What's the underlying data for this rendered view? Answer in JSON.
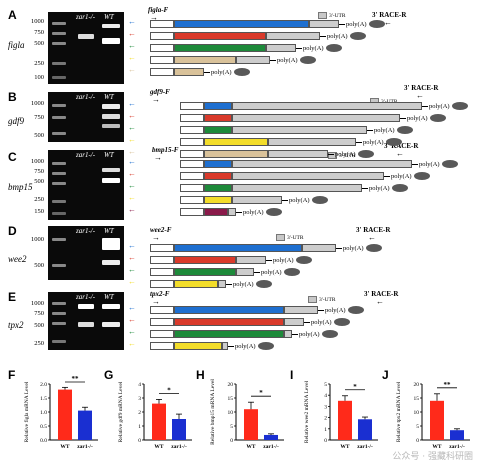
{
  "panels": {
    "A": {
      "letter": "A",
      "gene": "figla",
      "primer": "figla-F",
      "race": "3' RACE-R",
      "utr": "3'-UTR",
      "genotypes": [
        "zar1-/-",
        "WT"
      ],
      "ladder": [
        "1000",
        "750",
        "500",
        "250",
        "100"
      ],
      "polya": [
        "poly(A)",
        "poly(A)",
        "poly(A)",
        "poly(A)",
        "poly(A)"
      ]
    },
    "B": {
      "letter": "B",
      "gene": "gdf9",
      "primer": "gdf9-F",
      "race": "3' RACE-R",
      "utr": "3'-UTR",
      "genotypes": [
        "zar1-/-",
        "WT"
      ],
      "ladder": [
        "1000",
        "750",
        "500"
      ],
      "polya": [
        "poly(A)",
        "poly(A)",
        "poly(A)",
        "poly(A)",
        "poly(A)"
      ]
    },
    "C": {
      "letter": "C",
      "gene": "bmp15",
      "primer": "bmp15-F",
      "race": "3' RACE-R",
      "utr": "3'-UTR",
      "genotypes": [
        "zar1-/-",
        "WT"
      ],
      "ladder": [
        "1000",
        "750",
        "500",
        "250",
        "150"
      ],
      "polya": [
        "poly(A)",
        "poly(A)",
        "poly(A)",
        "poly(A)",
        "poly(A)"
      ]
    },
    "D": {
      "letter": "D",
      "gene": "wee2",
      "primer": "wee2-F",
      "race": "3' RACE-R",
      "utr": "3'-UTR",
      "genotypes": [
        "zar1-/-",
        "WT"
      ],
      "ladder": [
        "1000",
        "500"
      ],
      "polya": [
        "poly(A)",
        "poly(A)",
        "poly(A)",
        "poly(A)"
      ]
    },
    "E": {
      "letter": "E",
      "gene": "tpx2",
      "primer": "tpx2-F",
      "race": "3' RACE-R",
      "utr": "3'-UTR",
      "genotypes": [
        "zar1-/-",
        "WT"
      ],
      "ladder": [
        "1000",
        "750",
        "500",
        "250"
      ],
      "polya": [
        "poly(A)",
        "poly(A)",
        "poly(A)",
        "poly(A)"
      ]
    }
  },
  "bar_panels": {
    "F": {
      "letter": "F",
      "gene_italic": "figla",
      "sig": "**"
    },
    "G": {
      "letter": "G",
      "gene_italic": "gdf9",
      "sig": "*"
    },
    "H": {
      "letter": "H",
      "gene_italic": "bmp15",
      "sig": "*"
    },
    "I": {
      "letter": "I",
      "gene_italic": "wee2",
      "sig": "*"
    },
    "J": {
      "letter": "J",
      "gene_italic": "tpx2",
      "sig": "**"
    }
  },
  "chart_data": [
    {
      "type": "bar",
      "title": "",
      "ylabel": "Relative figla mRNA Level",
      "categories": [
        "WT",
        "zar1-/-"
      ],
      "values": [
        1.8,
        1.05
      ],
      "errors": [
        0.08,
        0.12
      ],
      "ylim": [
        0,
        2.0
      ],
      "yticks": [
        "0.0",
        "0.5",
        "1.0",
        "1.5",
        "2.0"
      ],
      "colors": [
        "#ff2a1a",
        "#1a2fd1"
      ]
    },
    {
      "type": "bar",
      "title": "",
      "ylabel": "Relative gdf9 mRNA Level",
      "categories": [
        "WT",
        "zar1-/-"
      ],
      "values": [
        2.6,
        1.5
      ],
      "errors": [
        0.3,
        0.35
      ],
      "ylim": [
        0,
        4
      ],
      "yticks": [
        "0",
        "1",
        "2",
        "3",
        "4"
      ],
      "colors": [
        "#ff2a1a",
        "#1a2fd1"
      ]
    },
    {
      "type": "bar",
      "title": "",
      "ylabel": "Relative bmp15 mRNA Level",
      "categories": [
        "WT",
        "zar1-/-"
      ],
      "values": [
        11,
        1.8
      ],
      "errors": [
        2.5,
        0.4
      ],
      "ylim": [
        0,
        20
      ],
      "yticks": [
        "0",
        "5",
        "10",
        "15",
        "20"
      ],
      "colors": [
        "#ff2a1a",
        "#1a2fd1"
      ]
    },
    {
      "type": "bar",
      "title": "",
      "ylabel": "Relative wee2 mRNA Level",
      "categories": [
        "WT",
        "zar1-/-"
      ],
      "values": [
        3.5,
        1.85
      ],
      "errors": [
        0.45,
        0.2
      ],
      "ylim": [
        0,
        5
      ],
      "yticks": [
        "0",
        "1",
        "2",
        "3",
        "4",
        "5"
      ],
      "colors": [
        "#ff2a1a",
        "#1a2fd1"
      ]
    },
    {
      "type": "bar",
      "title": "",
      "ylabel": "Relative tpx2 mRNA Level",
      "categories": [
        "WT",
        "zar1-/-"
      ],
      "values": [
        14,
        3.5
      ],
      "errors": [
        2.5,
        0.5
      ],
      "ylim": [
        0,
        20
      ],
      "yticks": [
        "0",
        "5",
        "10",
        "15",
        "20"
      ],
      "colors": [
        "#ff2a1a",
        "#1a2fd1"
      ]
    }
  ],
  "colors": {
    "blue": "#1e6fd0",
    "red": "#d93a2b",
    "green": "#1d8a3a",
    "yellow": "#f3dd2a",
    "tan": "#d9c29a",
    "maroon": "#8a1a4a",
    "grey": "#cdcdcd",
    "blob": "#595959"
  },
  "watermark": "公众号 · 强藏科研圈"
}
